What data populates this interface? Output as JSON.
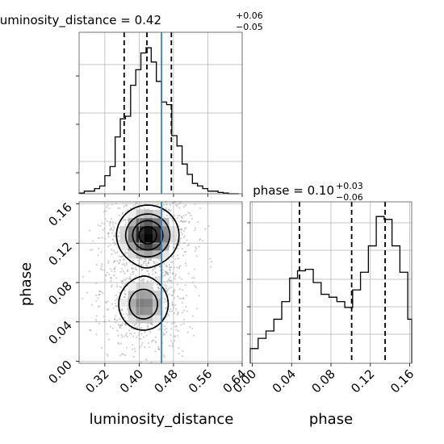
{
  "chart_data": [
    {
      "type": "histogram",
      "panel": "marginal-luminosity-distance",
      "title_label": "luminosity_distance = 0.42",
      "title_sup": "+0.06",
      "title_sub": "−0.05",
      "x_range": [
        0.26,
        0.64
      ],
      "bins": [
        0.26,
        0.272,
        0.284,
        0.296,
        0.308,
        0.32,
        0.332,
        0.344,
        0.356,
        0.368,
        0.38,
        0.392,
        0.404,
        0.416,
        0.428,
        0.44,
        0.452,
        0.464,
        0.476,
        0.488,
        0.5,
        0.512,
        0.524,
        0.536,
        0.548,
        0.56,
        0.572,
        0.584,
        0.596,
        0.608,
        0.62,
        0.632
      ],
      "counts": [
        0.5,
        2,
        2,
        4,
        6,
        14,
        21,
        44,
        58,
        60,
        84,
        96,
        109,
        113,
        102,
        87,
        71,
        69,
        45,
        37,
        23,
        15,
        8,
        6,
        4,
        2,
        2,
        1,
        0.5,
        0,
        0
      ],
      "y_max": 125,
      "quantile_lines": [
        0.365,
        0.418,
        0.475
      ],
      "truth_value": 0.452,
      "grid": true
    },
    {
      "type": "histogram",
      "panel": "marginal-phase",
      "title_label": "phase = 0.10",
      "title_sup": "+0.03",
      "title_sub": "−0.06",
      "x_range": [
        -0.002,
        0.162
      ],
      "x_ticks": [
        "0.00",
        "0.04",
        "0.08",
        "0.12",
        "0.16"
      ],
      "xlabel": "phase",
      "bins": [
        -0.002,
        0.006,
        0.014,
        0.022,
        0.03,
        0.038,
        0.046,
        0.054,
        0.062,
        0.07,
        0.078,
        0.086,
        0.094,
        0.102,
        0.11,
        0.118,
        0.126,
        0.134,
        0.142,
        0.15,
        0.158,
        0.162
      ],
      "counts": [
        10,
        17,
        22,
        30,
        42,
        58,
        63,
        64,
        55,
        47,
        45,
        42,
        38,
        50,
        62,
        80,
        100,
        98,
        80,
        62,
        30
      ],
      "y_max": 110,
      "quantile_lines": [
        0.048,
        0.101,
        0.135
      ],
      "grid": true
    },
    {
      "type": "2d-histogram",
      "panel": "joint",
      "x_range": [
        0.26,
        0.64
      ],
      "y_range": [
        -0.002,
        0.162
      ],
      "x_ticks": [
        "0.32",
        "0.40",
        "0.48",
        "0.56",
        "0.64"
      ],
      "y_ticks": [
        "0.00",
        "0.04",
        "0.08",
        "0.12",
        "0.16"
      ],
      "xlabel": "luminosity_distance",
      "ylabel": "phase",
      "modes": [
        {
          "x": 0.42,
          "y": 0.128,
          "sx": 0.038,
          "sy": 0.016,
          "weight": 1.0
        },
        {
          "x": 0.41,
          "y": 0.058,
          "sx": 0.035,
          "sy": 0.016,
          "weight": 0.62
        }
      ],
      "contour_levels": [
        0.16,
        0.4,
        0.65,
        0.86
      ],
      "truth_x": 0.452,
      "grid": true
    }
  ]
}
